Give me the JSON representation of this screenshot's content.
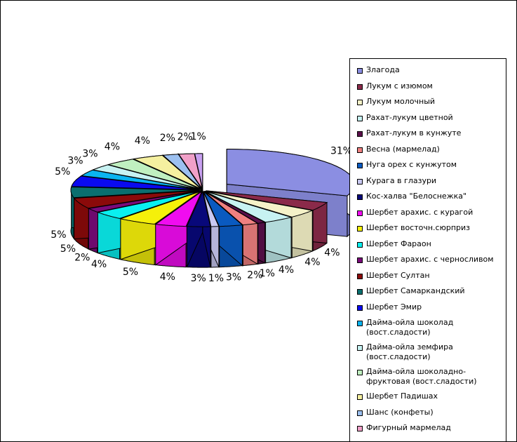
{
  "chart_data": {
    "type": "pie",
    "title": "",
    "legend_position": "right",
    "slices": [
      {
        "label": "Злагода",
        "value": 31,
        "value_label": "31%",
        "color": "#8b8ee2"
      },
      {
        "label": "Лукум с изюмом",
        "value": 4,
        "value_label": "4%",
        "color": "#8b2a4a"
      },
      {
        "label": "Лукум молочный",
        "value": 4,
        "value_label": "4%",
        "color": "#f5f2c8"
      },
      {
        "label": "Рахат-лукум цветной",
        "value": 4,
        "value_label": "4%",
        "color": "#c7f2f2"
      },
      {
        "label": "Рахат-лукум в кунжуте",
        "value": 1,
        "value_label": "1%",
        "color": "#5a0f4a"
      },
      {
        "label": "Весна (мармелад)",
        "value": 2,
        "value_label": "2%",
        "color": "#f08080"
      },
      {
        "label": "Нуга орех с кунжутом",
        "value": 3,
        "value_label": "3%",
        "color": "#0a5ac0"
      },
      {
        "label": "Курага в глазури",
        "value": 1,
        "value_label": "1%",
        "color": "#c9c9f2"
      },
      {
        "label": "Кос-халва \"Белоснежка\"",
        "value": 3,
        "value_label": "3%",
        "color": "#08087a"
      },
      {
        "label": "Шербет арахис. с курагой",
        "value": 4,
        "value_label": "4%",
        "color": "#f00cf0"
      },
      {
        "label": "Шербет восточн.сюрприз",
        "value": 5,
        "value_label": "5%",
        "color": "#f5f00a"
      },
      {
        "label": "Шербет Фараон",
        "value": 4,
        "value_label": "4%",
        "color": "#0af0f0"
      },
      {
        "label": "Шербет арахис. с черносливом",
        "value": 2,
        "value_label": "2%",
        "color": "#7a0a7a"
      },
      {
        "label": "Шербет Султан",
        "value": 5,
        "value_label": "5%",
        "color": "#8b0a0a"
      },
      {
        "label": "Шербет Самаркандский",
        "value": 5,
        "value_label": "5%",
        "color": "#0a6f6f"
      },
      {
        "label": "Шербет Эмир",
        "value": 5,
        "value_label": "5%",
        "color": "#0a0af0"
      },
      {
        "label": "Дайма-ойла шоколад (вост.сладости)",
        "value": 3,
        "value_label": "3%",
        "color": "#0ab4f0"
      },
      {
        "label": "Дайма-ойла земфира (вост.сладости)",
        "value": 3,
        "value_label": "3%",
        "color": "#c7f2f2"
      },
      {
        "label": "Дайма-ойла шоколадно-фруктовая (вост.сладости)",
        "value": 4,
        "value_label": "4%",
        "color": "#c0f0c0"
      },
      {
        "label": "Шербет Падишах",
        "value": 4,
        "value_label": "4%",
        "color": "#f5f0a0"
      },
      {
        "label": "Шанс (конфеты)",
        "value": 2,
        "value_label": "2%",
        "color": "#9cc0f0"
      },
      {
        "label": "Фигурный мармелад",
        "value": 2,
        "value_label": "2%",
        "color": "#f0a0c8"
      },
      {
        "label": "",
        "value": 1,
        "value_label": "1%",
        "color": "#c8a0f0"
      }
    ]
  }
}
